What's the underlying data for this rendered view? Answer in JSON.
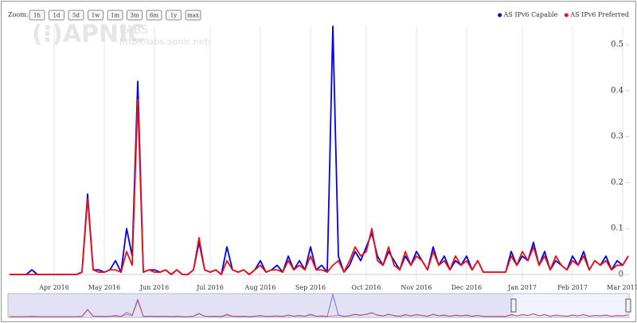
{
  "chart_data": {
    "type": "line",
    "categories": [
      null,
      null,
      null,
      null,
      null,
      null,
      null,
      null,
      "Apr 2016",
      null,
      null,
      null,
      null,
      null,
      null,
      null,
      null,
      "May 2016",
      null,
      null,
      null,
      null,
      null,
      null,
      null,
      null,
      "Jun 2016",
      null,
      null,
      null,
      null,
      null,
      null,
      null,
      null,
      null,
      "Jul 2016",
      null,
      null,
      null,
      null,
      null,
      null,
      null,
      null,
      "Aug 2016",
      null,
      null,
      null,
      null,
      null,
      null,
      null,
      null,
      "Sep 2016",
      null,
      null,
      null,
      null,
      null,
      null,
      null,
      null,
      null,
      "Oct 2016",
      null,
      null,
      null,
      null,
      null,
      null,
      null,
      null,
      "Nov 2016",
      null,
      null,
      null,
      null,
      null,
      null,
      null,
      null,
      "Dec 2016",
      null,
      null,
      null,
      null,
      null,
      null,
      null,
      null,
      null,
      "Jan 2017",
      null,
      null,
      null,
      null,
      null,
      null,
      null,
      null,
      "Feb 2017",
      null,
      null,
      null,
      null,
      null,
      null,
      null,
      null,
      "Mar 2017",
      null
    ],
    "series": [
      {
        "name": "AS IPv6 Capable",
        "color": "#0000ee",
        "values": [
          0,
          0,
          0,
          0,
          0.01,
          0,
          0,
          0,
          0,
          0,
          0,
          0,
          0,
          0.005,
          0.175,
          0.01,
          0.01,
          0.005,
          0.01,
          0.03,
          0.005,
          0.1,
          0.04,
          0.42,
          0.005,
          0.01,
          0.01,
          0.005,
          0.01,
          0,
          0.01,
          0,
          0,
          0.01,
          0.07,
          0.01,
          0.005,
          0.01,
          0,
          0.06,
          0.01,
          0.005,
          0.01,
          0,
          0.01,
          0.03,
          0.005,
          0.01,
          0.02,
          0.005,
          0.04,
          0.01,
          0.03,
          0.01,
          0.06,
          0.01,
          0.02,
          0.005,
          0.54,
          0.04,
          0.005,
          0.02,
          0.05,
          0.03,
          0.06,
          0.09,
          0.04,
          0.02,
          0.05,
          0.03,
          0.01,
          0.04,
          0.02,
          0.05,
          0.03,
          0.01,
          0.06,
          0.02,
          0.04,
          0.01,
          0.03,
          0.02,
          0.04,
          0.01,
          0.03,
          0.005,
          0.005,
          0.005,
          0.005,
          0.005,
          0.05,
          0.02,
          0.04,
          0.03,
          0.07,
          0.02,
          0.05,
          0.01,
          0.03,
          0.02,
          0.01,
          0.04,
          0.02,
          0.05,
          0.01,
          0.03,
          0.02,
          0.04,
          0.01,
          0.03,
          0.02,
          0.04
        ]
      },
      {
        "name": "AS IPv6 Preferred",
        "color": "#ee1111",
        "values": [
          0,
          0,
          0,
          0,
          0,
          0,
          0,
          0,
          0,
          0,
          0,
          0,
          0,
          0.005,
          0.165,
          0.01,
          0.005,
          0.005,
          0.01,
          0.01,
          0.005,
          0.05,
          0.02,
          0.38,
          0.005,
          0.01,
          0.005,
          0.005,
          0.01,
          0,
          0.01,
          0,
          0,
          0.01,
          0.08,
          0.01,
          0.005,
          0.01,
          0,
          0.03,
          0.01,
          0.005,
          0.01,
          0,
          0.01,
          0.02,
          0.005,
          0.01,
          0.01,
          0.005,
          0.03,
          0.01,
          0.02,
          0.01,
          0.04,
          0.01,
          0.01,
          0.005,
          0.02,
          0.03,
          0.005,
          0.03,
          0.06,
          0.04,
          0.05,
          0.1,
          0.03,
          0.02,
          0.06,
          0.02,
          0.01,
          0.05,
          0.02,
          0.04,
          0.03,
          0.01,
          0.05,
          0.02,
          0.03,
          0.01,
          0.04,
          0.02,
          0.03,
          0.01,
          0.03,
          0.005,
          0.005,
          0.005,
          0.005,
          0.005,
          0.04,
          0.02,
          0.05,
          0.03,
          0.06,
          0.02,
          0.04,
          0.01,
          0.04,
          0.02,
          0.01,
          0.03,
          0.02,
          0.04,
          0.01,
          0.03,
          0.02,
          0.03,
          0.01,
          0.02,
          0.02,
          0.04
        ]
      }
    ],
    "ylim": [
      0,
      0.54
    ],
    "yticks": [
      0,
      0.1,
      0.2,
      0.3,
      0.4,
      0.5
    ],
    "grid": "x",
    "legend": "top-right"
  },
  "range_selector": {
    "label": "Zoom:",
    "buttons": [
      "1h",
      "1d",
      "5d",
      "1w",
      "1m",
      "3m",
      "6m",
      "1y",
      "max"
    ]
  },
  "watermark": {
    "brand": "(⁝)APNIC",
    "sub": "LABS",
    "url": "http://labs.apnic.net/"
  }
}
